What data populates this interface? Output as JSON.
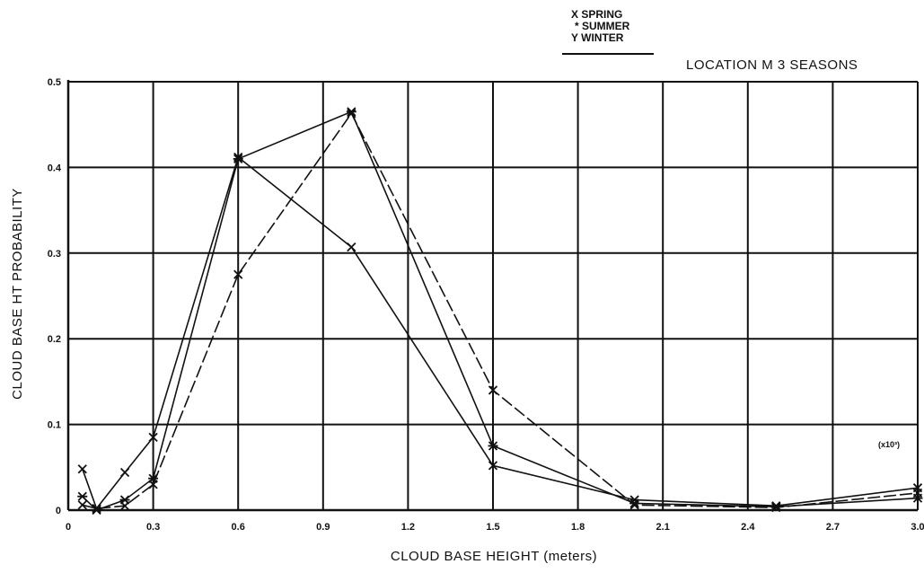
{
  "chart_data": {
    "type": "line",
    "location_label": "LOCATION M  3 SEASONS",
    "xlabel": "CLOUD BASE HEIGHT (meters)",
    "ylabel": "CLOUD BASE HT PROBABILITY",
    "x_multiplier_label": "(x10³)",
    "xlim": [
      0,
      3.0
    ],
    "ylim": [
      0,
      0.5
    ],
    "x_ticks": [
      "0",
      "0.3",
      "0.6",
      "0.9",
      "1.2",
      "1.5",
      "1.8",
      "2.1",
      "2.4",
      "2.7",
      "3.0"
    ],
    "y_ticks": [
      "0",
      "0.1",
      "0.2",
      "0.3",
      "0.4",
      "0.5"
    ],
    "grid": true,
    "legend_position": "top-center",
    "legend": [
      {
        "marker": "X",
        "label": "SPRING"
      },
      {
        "marker": "*",
        "label": "SUMMER"
      },
      {
        "marker": "Y",
        "label": "WINTER"
      }
    ],
    "series": [
      {
        "name": "SPRING",
        "x": [
          0.05,
          0.1,
          0.2,
          0.3,
          0.6,
          1.0,
          1.5,
          2.0,
          2.5,
          3.0
        ],
        "y": [
          0.048,
          0.002,
          0.044,
          0.085,
          0.412,
          0.307,
          0.052,
          0.012,
          0.005,
          0.026
        ]
      },
      {
        "name": "SUMMER",
        "x": [
          0.05,
          0.1,
          0.2,
          0.3,
          0.6,
          1.0,
          1.5,
          2.0,
          2.5,
          3.0
        ],
        "y": [
          0.016,
          0.0,
          0.012,
          0.037,
          0.41,
          0.465,
          0.075,
          0.008,
          0.004,
          0.014
        ]
      },
      {
        "name": "WINTER",
        "x": [
          0.05,
          0.1,
          0.2,
          0.3,
          0.6,
          1.0,
          1.5,
          2.0,
          2.5,
          3.0
        ],
        "y": [
          0.006,
          0.002,
          0.005,
          0.03,
          0.275,
          0.463,
          0.14,
          0.006,
          0.003,
          0.02
        ]
      }
    ]
  }
}
